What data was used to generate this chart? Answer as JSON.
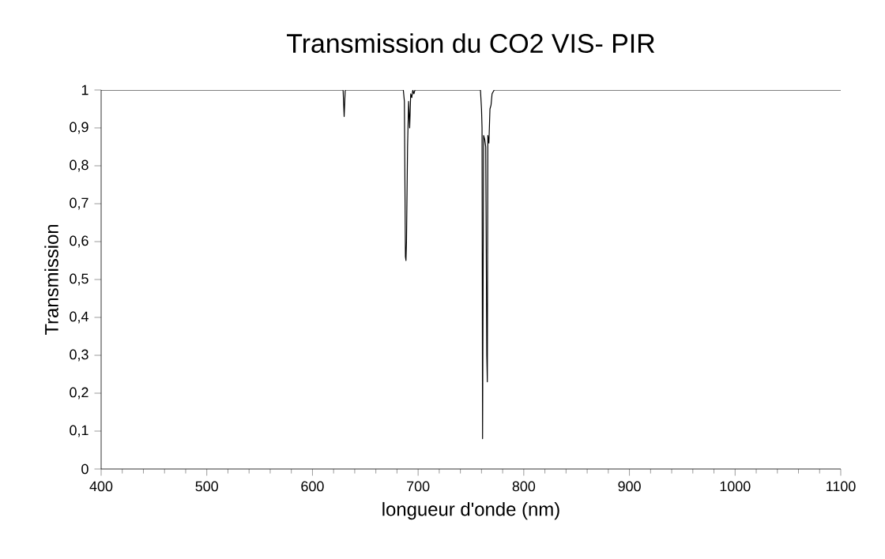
{
  "chart_data": {
    "type": "line",
    "title": "Transmission du CO2 VIS- PIR",
    "xlabel": "longueur d'onde (nm)",
    "ylabel": "Transmission",
    "x": [
      400,
      629,
      630,
      631,
      686,
      687,
      688,
      688.5,
      689,
      690,
      691,
      692,
      693,
      694,
      695,
      696,
      697,
      759,
      760,
      760.5,
      761,
      762,
      763,
      764,
      765,
      765.5,
      766,
      767,
      768,
      769,
      770,
      772,
      1100
    ],
    "series": [
      {
        "color": "#000000",
        "values": [
          1,
          1,
          0.93,
          1,
          1,
          0.97,
          0.56,
          0.55,
          0.6,
          0.85,
          0.97,
          0.9,
          0.99,
          0.98,
          1,
          0.99,
          1,
          1,
          0.95,
          0.9,
          0.08,
          0.88,
          0.87,
          0.85,
          0.3,
          0.23,
          0.88,
          0.86,
          0.95,
          0.96,
          0.99,
          1,
          1
        ]
      }
    ],
    "xlim": [
      400,
      1100
    ],
    "ylim": [
      0,
      1
    ],
    "xticks": [
      400,
      500,
      600,
      700,
      800,
      900,
      1000,
      1100
    ],
    "yticks": [
      0,
      {
        "value": 0.1,
        "label": "0,1"
      },
      {
        "value": 0.2,
        "label": "0,2"
      },
      {
        "value": 0.3,
        "label": "0,3"
      },
      {
        "value": 0.4,
        "label": "0,4"
      },
      {
        "value": 0.5,
        "label": "0,5"
      },
      {
        "value": 0.6,
        "label": "0,6"
      },
      {
        "value": 0.7,
        "label": "0,7"
      },
      {
        "value": 0.8,
        "label": "0,8"
      },
      {
        "value": 0.9,
        "label": "0,9"
      },
      1
    ],
    "grid": false,
    "marker": "none",
    "line_style": "solid"
  }
}
